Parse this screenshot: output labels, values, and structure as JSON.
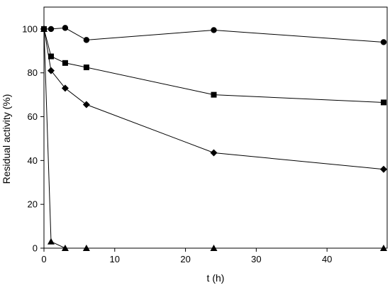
{
  "chart_data": {
    "type": "line",
    "title": "",
    "xlabel": "t (h)",
    "ylabel": "Residual activity (%)",
    "xlim": [
      0,
      48.5
    ],
    "ylim": [
      0,
      110
    ],
    "xticks": [
      0,
      10,
      20,
      30,
      40
    ],
    "yticks": [
      0,
      20,
      40,
      60,
      80,
      100
    ],
    "grid": false,
    "legend": "none",
    "series": [
      {
        "marker": "circle",
        "color": "#000000",
        "x": [
          0,
          1,
          3,
          6,
          24,
          48
        ],
        "y": [
          100,
          100,
          100.5,
          95,
          99.5,
          94
        ]
      },
      {
        "marker": "square",
        "color": "#000000",
        "x": [
          0,
          1,
          3,
          6,
          24,
          48
        ],
        "y": [
          100,
          87.5,
          84.5,
          82.5,
          70,
          66.5
        ]
      },
      {
        "marker": "diamond",
        "color": "#000000",
        "x": [
          0,
          1,
          3,
          6,
          24,
          48
        ],
        "y": [
          100,
          81,
          73,
          65.5,
          43.5,
          36
        ]
      },
      {
        "marker": "triangle",
        "color": "#000000",
        "x": [
          0,
          1,
          3,
          6,
          24,
          48
        ],
        "y": [
          100,
          3,
          0,
          0,
          0,
          0
        ]
      }
    ]
  }
}
